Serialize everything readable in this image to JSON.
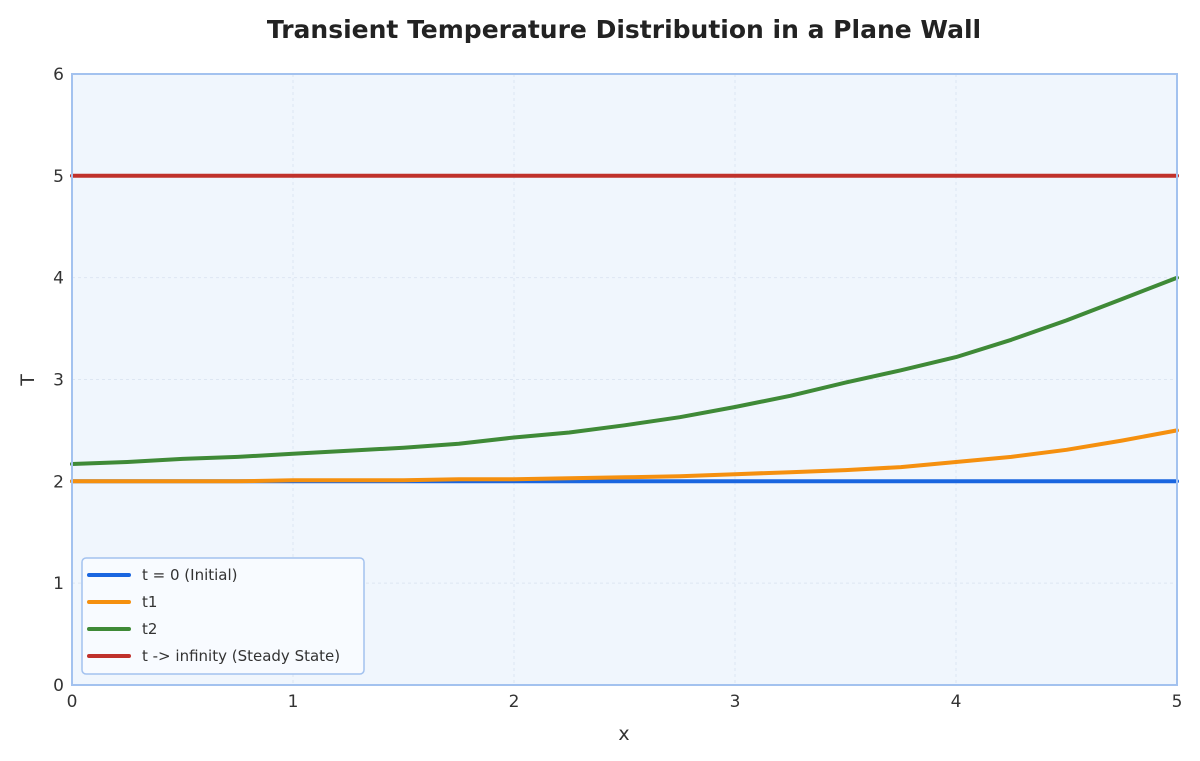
{
  "chart_data": {
    "type": "line",
    "title": "Transient Temperature Distribution in a Plane Wall",
    "xlabel": "x",
    "ylabel": "T",
    "xlim": [
      0,
      5
    ],
    "ylim": [
      0,
      6
    ],
    "xticks": [
      "0",
      "1",
      "2",
      "3",
      "4",
      "5"
    ],
    "yticks": [
      "0",
      "1",
      "2",
      "3",
      "4",
      "5",
      "6"
    ],
    "grid": true,
    "legend_position": "lower-left",
    "x": [
      0,
      0.25,
      0.5,
      0.75,
      1,
      1.25,
      1.5,
      1.75,
      2,
      2.25,
      2.5,
      2.75,
      3,
      3.25,
      3.5,
      3.75,
      4,
      4.25,
      4.5,
      4.75,
      5
    ],
    "series": [
      {
        "name": "t = 0 (Initial)",
        "color": "#1a66e0",
        "values": [
          2,
          2,
          2,
          2,
          2,
          2,
          2,
          2,
          2,
          2,
          2,
          2,
          2,
          2,
          2,
          2,
          2,
          2,
          2,
          2,
          2
        ]
      },
      {
        "name": "t1",
        "color": "#f5900f",
        "values": [
          2.0,
          2.0,
          2.0,
          2.0,
          2.01,
          2.01,
          2.01,
          2.02,
          2.02,
          2.03,
          2.04,
          2.05,
          2.07,
          2.09,
          2.11,
          2.14,
          2.19,
          2.24,
          2.31,
          2.4,
          2.5
        ]
      },
      {
        "name": "t2",
        "color": "#3f8a37",
        "values": [
          2.17,
          2.19,
          2.22,
          2.24,
          2.27,
          2.3,
          2.33,
          2.37,
          2.43,
          2.48,
          2.55,
          2.63,
          2.73,
          2.84,
          2.97,
          3.09,
          3.22,
          3.39,
          3.58,
          3.79,
          4.0
        ]
      },
      {
        "name": "t -> infinity (Steady State)",
        "color": "#c0312b",
        "values": [
          5,
          5,
          5,
          5,
          5,
          5,
          5,
          5,
          5,
          5,
          5,
          5,
          5,
          5,
          5,
          5,
          5,
          5,
          5,
          5,
          5
        ]
      }
    ],
    "colors": {
      "plot_background": "#f0f6fd",
      "plot_border": "#a3c2ef",
      "grid": "#dde6f2"
    }
  }
}
